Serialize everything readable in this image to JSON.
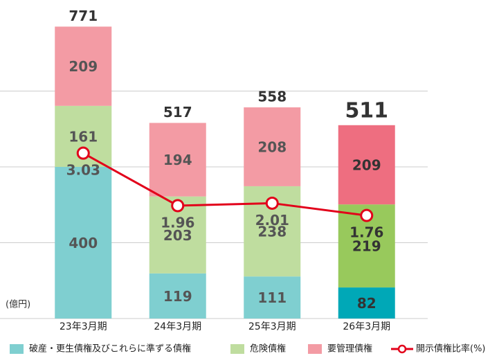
{
  "chart_data": {
    "type": "stacked_bar_line",
    "categories": [
      "23年3月期",
      "24年3月期",
      "25年3月期",
      "26年3月期"
    ],
    "series": [
      {
        "name": "破産・更生債権及びこれらに準ずる債権",
        "color": "#7fcfd0",
        "colors": [
          "#7fcfd0",
          "#7fcfd0",
          "#7fcfd0",
          "#00a8b7"
        ],
        "values": [
          400,
          119,
          111,
          82
        ]
      },
      {
        "name": "危険債権",
        "color": "#bfdd9f",
        "colors": [
          "#bfdd9f",
          "#bfdd9f",
          "#bfdd9f",
          "#98c95c"
        ],
        "values": [
          161,
          203,
          238,
          219
        ]
      },
      {
        "name": "要管理債権",
        "color": "#f39ba4",
        "colors": [
          "#f39ba4",
          "#f39ba4",
          "#f39ba4",
          "#ee6e80"
        ],
        "values": [
          209,
          194,
          208,
          209
        ]
      },
      {
        "name": "開示債権比率(%)",
        "type": "line",
        "axis": "y2",
        "color": "#e2001a",
        "values": [
          3.03,
          1.96,
          2.01,
          1.76
        ]
      }
    ],
    "totals": [
      771,
      517,
      558,
      511
    ],
    "unit_label": "(億円)",
    "ylim": [
      0,
      800
    ],
    "yticks": [
      0,
      200,
      400,
      600
    ],
    "y2lim": [
      -0.34,
      5.84
    ],
    "grid": true
  }
}
